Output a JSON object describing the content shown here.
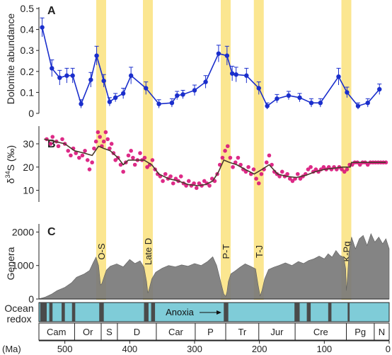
{
  "chart_data": [
    {
      "type": "line",
      "panel_letter": "A",
      "ylabel": "Dolomite abundance",
      "xlim": [
        540,
        0
      ],
      "ylim": [
        0,
        0.5
      ],
      "yticks": [
        "0",
        "0.1",
        "0.2",
        "0.3",
        "0.4",
        "0.5"
      ],
      "grid": false,
      "color": "#1a2ecc",
      "series": [
        {
          "x": [
            535,
            520,
            508,
            497,
            488,
            475,
            460,
            451,
            440,
            431,
            422,
            410,
            398,
            375,
            355,
            335,
            327,
            318,
            300,
            283,
            263,
            250,
            242,
            236,
            220,
            201,
            188,
            173,
            155,
            138,
            120,
            106,
            78,
            65,
            48,
            33,
            15
          ],
          "y": [
            0.41,
            0.215,
            0.17,
            0.18,
            0.18,
            0.045,
            0.16,
            0.275,
            0.155,
            0.055,
            0.075,
            0.095,
            0.18,
            0.12,
            0.045,
            0.05,
            0.085,
            0.09,
            0.11,
            0.15,
            0.285,
            0.275,
            0.19,
            0.185,
            0.18,
            0.12,
            0.035,
            0.07,
            0.085,
            0.075,
            0.05,
            0.05,
            0.175,
            0.1,
            0.035,
            0.05,
            0.115
          ],
          "err": [
            0.045,
            0.04,
            0.035,
            0.035,
            0.035,
            0.02,
            0.035,
            0.045,
            0.03,
            0.02,
            0.02,
            0.025,
            0.04,
            0.03,
            0.02,
            0.02,
            0.02,
            0.02,
            0.025,
            0.03,
            0.04,
            0.045,
            0.035,
            0.035,
            0.035,
            0.03,
            0.015,
            0.02,
            0.02,
            0.02,
            0.02,
            0.02,
            0.04,
            0.025,
            0.015,
            0.02,
            0.025
          ]
        }
      ]
    },
    {
      "type": "scatter",
      "panel_letter": "B",
      "ylabel_base": "δ",
      "ylabel_sup": "34",
      "ylabel_tail": "S (‰)",
      "xlim": [
        540,
        0
      ],
      "ylim": [
        5,
        37
      ],
      "yticks": [
        "10",
        "20",
        "30"
      ],
      "grid": false,
      "point_color": "#d9137a",
      "trend_color": "#4a3a2c",
      "series": [
        {
          "points": [
            [
              528,
              32
            ],
            [
              522,
              30
            ],
            [
              519,
              33
            ],
            [
              513,
              31
            ],
            [
              510,
              29
            ],
            [
              504,
              32
            ],
            [
              500,
              30
            ],
            [
              495,
              27
            ],
            [
              491,
              25
            ],
            [
              487,
              28
            ],
            [
              483,
              26
            ],
            [
              478,
              24
            ],
            [
              473,
              25
            ],
            [
              469,
              27
            ],
            [
              465,
              23
            ],
            [
              462,
              19
            ],
            [
              458,
              22
            ],
            [
              455,
              28
            ],
            [
              452,
              31
            ],
            [
              449,
              35
            ],
            [
              446,
              33
            ],
            [
              443,
              29
            ],
            [
              440,
              31
            ],
            [
              437,
              35
            ],
            [
              434,
              32
            ],
            [
              431,
              28
            ],
            [
              428,
              30
            ],
            [
              425,
              26
            ],
            [
              422,
              23
            ],
            [
              418,
              24
            ],
            [
              414,
              21
            ],
            [
              410,
              18
            ],
            [
              406,
              22
            ],
            [
              402,
              25
            ],
            [
              398,
              27
            ],
            [
              395,
              24
            ],
            [
              392,
              21
            ],
            [
              388,
              23
            ],
            [
              384,
              26
            ],
            [
              381,
              23
            ],
            [
              377,
              24
            ],
            [
              373,
              20
            ],
            [
              369,
              21
            ],
            [
              365,
              23
            ],
            [
              361,
              19
            ],
            [
              357,
              17
            ],
            [
              353,
              16
            ],
            [
              349,
              14
            ],
            [
              345,
              17
            ],
            [
              341,
              15
            ],
            [
              337,
              16
            ],
            [
              333,
              13
            ],
            [
              329,
              15
            ],
            [
              325,
              14
            ],
            [
              321,
              16
            ],
            [
              317,
              13
            ],
            [
              313,
              12
            ],
            [
              309,
              14
            ],
            [
              305,
              12
            ],
            [
              301,
              13
            ],
            [
              297,
              11
            ],
            [
              293,
              13
            ],
            [
              289,
              12
            ],
            [
              285,
              14
            ],
            [
              281,
              13
            ],
            [
              277,
              12
            ],
            [
              273,
              15
            ],
            [
              269,
              14
            ],
            [
              265,
              17
            ],
            [
              261,
              21
            ],
            [
              257,
              24
            ],
            [
              253,
              27
            ],
            [
              249,
              29
            ],
            [
              245,
              24
            ],
            [
              241,
              20
            ],
            [
              237,
              22
            ],
            [
              233,
              24
            ],
            [
              229,
              21
            ],
            [
              225,
              19
            ],
            [
              221,
              18
            ],
            [
              217,
              20
            ],
            [
              213,
              17
            ],
            [
              209,
              19
            ],
            [
              205,
              15
            ],
            [
              201,
              13
            ],
            [
              197,
              17
            ],
            [
              193,
              19
            ],
            [
              189,
              22
            ],
            [
              185,
              25
            ],
            [
              181,
              21
            ],
            [
              177,
              18
            ],
            [
              173,
              17
            ],
            [
              169,
              16
            ],
            [
              165,
              18
            ],
            [
              161,
              16
            ],
            [
              157,
              17
            ],
            [
              153,
              15
            ],
            [
              149,
              14
            ],
            [
              145,
              15
            ],
            [
              141,
              17
            ],
            [
              137,
              15
            ],
            [
              133,
              16
            ],
            [
              129,
              17
            ],
            [
              125,
              19
            ],
            [
              121,
              20
            ],
            [
              117,
              18
            ],
            [
              113,
              19
            ],
            [
              109,
              18
            ],
            [
              105,
              19
            ],
            [
              101,
              20
            ],
            [
              97,
              19
            ],
            [
              93,
              20
            ],
            [
              89,
              19
            ],
            [
              85,
              20
            ],
            [
              81,
              19
            ],
            [
              77,
              20
            ],
            [
              73,
              19
            ],
            [
              69,
              18
            ],
            [
              65,
              19
            ],
            [
              61,
              21
            ],
            [
              57,
              21
            ],
            [
              53,
              22
            ],
            [
              49,
              22
            ],
            [
              45,
              21
            ],
            [
              41,
              22
            ],
            [
              37,
              22
            ],
            [
              33,
              21
            ],
            [
              29,
              22
            ],
            [
              25,
              22
            ],
            [
              21,
              22
            ],
            [
              17,
              22
            ],
            [
              13,
              22
            ],
            [
              9,
              22
            ],
            [
              5,
              22
            ]
          ],
          "trend": [
            [
              532,
              32
            ],
            [
              515,
              31
            ],
            [
              500,
              30
            ],
            [
              485,
              27
            ],
            [
              470,
              26
            ],
            [
              458,
              25
            ],
            [
              448,
              29
            ],
            [
              440,
              28
            ],
            [
              430,
              27
            ],
            [
              418,
              24
            ],
            [
              410,
              21
            ],
            [
              402,
              23
            ],
            [
              390,
              23
            ],
            [
              378,
              23
            ],
            [
              366,
              21
            ],
            [
              355,
              17
            ],
            [
              340,
              15
            ],
            [
              325,
              14
            ],
            [
              310,
              12.5
            ],
            [
              295,
              12
            ],
            [
              283,
              12.5
            ],
            [
              272,
              14
            ],
            [
              263,
              18
            ],
            [
              255,
              23
            ],
            [
              246,
              22
            ],
            [
              235,
              21
            ],
            [
              222,
              19
            ],
            [
              208,
              17
            ],
            [
              196,
              19
            ],
            [
              185,
              21
            ],
            [
              172,
              17
            ],
            [
              158,
              16
            ],
            [
              143,
              15.5
            ],
            [
              128,
              16.5
            ],
            [
              114,
              18
            ],
            [
              100,
              19
            ],
            [
              86,
              19.5
            ],
            [
              72,
              20
            ],
            [
              60,
              20
            ],
            [
              58,
              22
            ],
            [
              45,
              22
            ],
            [
              25,
              22
            ],
            [
              5,
              22
            ]
          ]
        }
      ]
    },
    {
      "type": "area",
      "panel_letter": "C",
      "ylabel": "Genera",
      "xlim": [
        540,
        0
      ],
      "ylim": [
        0,
        2200
      ],
      "yticks": [
        "0",
        "1000",
        "2000"
      ],
      "xticks": [
        "500",
        "400",
        "300",
        "200",
        "100",
        "0"
      ],
      "xtick_values": [
        500,
        400,
        300,
        200,
        100,
        0
      ],
      "xunit": "(Ma)",
      "grid": false,
      "fill_color": "#7a7a7a",
      "series": [
        {
          "x": [
            541,
            530,
            520,
            512,
            500,
            490,
            482,
            470,
            462,
            456,
            452,
            448,
            445,
            443,
            440,
            436,
            430,
            420,
            410,
            400,
            392,
            384,
            378,
            374,
            372,
            370,
            366,
            360,
            350,
            340,
            330,
            320,
            310,
            300,
            290,
            280,
            272,
            266,
            262,
            258,
            255,
            252,
            250,
            248,
            244,
            238,
            230,
            222,
            214,
            206,
            202,
            199,
            196,
            192,
            186,
            178,
            170,
            160,
            150,
            140,
            132,
            124,
            116,
            108,
            100,
            94,
            88,
            82,
            76,
            70,
            67,
            66,
            64,
            62,
            58,
            52,
            46,
            40,
            34,
            28,
            22,
            16,
            10,
            5,
            0
          ],
          "y": [
            0,
            60,
            150,
            250,
            350,
            480,
            650,
            750,
            850,
            1100,
            1250,
            1000,
            420,
            460,
            640,
            860,
            980,
            1050,
            960,
            1180,
            1060,
            1140,
            950,
            520,
            180,
            300,
            600,
            800,
            920,
            1000,
            960,
            1020,
            980,
            1060,
            1000,
            1120,
            1260,
            1000,
            700,
            380,
            150,
            80,
            220,
            520,
            750,
            830,
            950,
            1050,
            980,
            900,
            420,
            100,
            260,
            600,
            880,
            950,
            1000,
            1080,
            1000,
            1120,
            1060,
            1150,
            1200,
            1280,
            1200,
            1350,
            1250,
            1450,
            1300,
            1250,
            900,
            250,
            700,
            1400,
            1850,
            1500,
            1800,
            1900,
            1600,
            1950,
            1700,
            1850,
            1650,
            1800,
            1500
          ]
        }
      ]
    }
  ],
  "events": [
    {
      "label": "O-S",
      "x": 444
    },
    {
      "label": "Late D",
      "x": 372
    },
    {
      "label": "P-T",
      "x": 252
    },
    {
      "label": "T-J",
      "x": 201
    },
    {
      "label": "K-Pg",
      "x": 66
    }
  ],
  "event_band_color": "#fbe690",
  "redox": {
    "label_line1": "Ocean",
    "label_line2": "redox",
    "annotation": "Anoxia",
    "bar_color": "#7fccd8",
    "anoxia_color": "#4a4a4a",
    "anoxia_intervals": [
      [
        538,
        528
      ],
      [
        524,
        519
      ],
      [
        505,
        500
      ],
      [
        489,
        484
      ],
      [
        447,
        440
      ],
      [
        378,
        371
      ],
      [
        367,
        361
      ],
      [
        255,
        248
      ],
      [
        146,
        138
      ],
      [
        127,
        121
      ],
      [
        94,
        89
      ],
      [
        64,
        61
      ]
    ]
  },
  "periods": [
    {
      "label": "Cam",
      "start": 541,
      "end": 485
    },
    {
      "label": "Or",
      "start": 485,
      "end": 444
    },
    {
      "label": "S",
      "start": 444,
      "end": 419
    },
    {
      "label": "D",
      "start": 419,
      "end": 359
    },
    {
      "label": "Car",
      "start": 359,
      "end": 299
    },
    {
      "label": "P",
      "start": 299,
      "end": 252
    },
    {
      "label": "Tr",
      "start": 252,
      "end": 201
    },
    {
      "label": "Jur",
      "start": 201,
      "end": 145
    },
    {
      "label": "Cre",
      "start": 145,
      "end": 66
    },
    {
      "label": "Pg",
      "start": 66,
      "end": 23
    },
    {
      "label": "N",
      "start": 23,
      "end": 0
    }
  ]
}
